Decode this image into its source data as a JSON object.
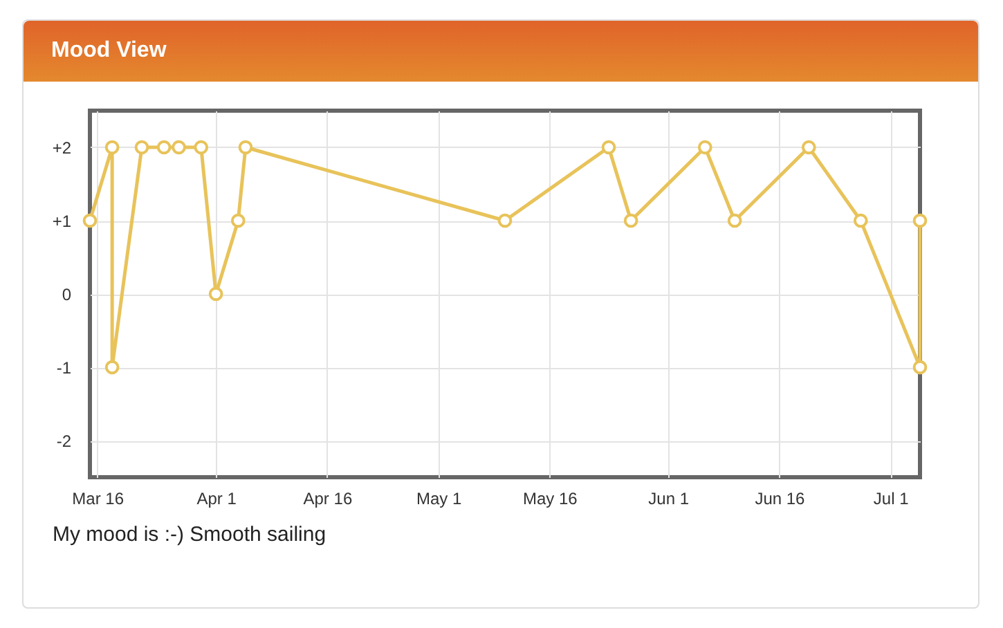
{
  "chart_data": {
    "type": "line",
    "title": "Mood View",
    "annotations": [
      "My mood is :-) Smooth sailing"
    ],
    "x": [
      "--03-15",
      "--03-18",
      "--03-18",
      "--03-22",
      "--03-25",
      "--03-27",
      "--03-30",
      "--04-01",
      "--04-04",
      "--04-05",
      "--05-10",
      "--05-24",
      "--05-27",
      "--06-06",
      "--06-10",
      "--06-20",
      "--06-27",
      "--07-05",
      "--07-05"
    ],
    "series": [
      {
        "color": "#e8c35a",
        "values": [
          1,
          2,
          -1,
          2,
          2,
          2,
          2,
          0,
          1,
          2,
          1,
          2,
          1,
          2,
          1,
          2,
          1,
          -1,
          1
        ]
      }
    ],
    "xlim": [
      "--03-15",
      "--07-05"
    ],
    "xticks": [
      {
        "value": "--03-16",
        "label": "Mar 16"
      },
      {
        "value": "--04-01",
        "label": "Apr 1"
      },
      {
        "value": "--04-16",
        "label": "Apr 16"
      },
      {
        "value": "--05-01",
        "label": "May 1"
      },
      {
        "value": "--05-16",
        "label": "May 16"
      },
      {
        "value": "--06-01",
        "label": "Jun 1"
      },
      {
        "value": "--06-16",
        "label": "Jun 16"
      },
      {
        "value": "--07-01",
        "label": "Jul 1"
      }
    ],
    "ylim": [
      -2.5,
      2.5
    ],
    "yticks": [
      {
        "value": 2,
        "label": "+2"
      },
      {
        "value": 1,
        "label": "+1"
      },
      0,
      -1,
      -2
    ],
    "grid": true,
    "marker": "circle",
    "line_style": "solid"
  }
}
